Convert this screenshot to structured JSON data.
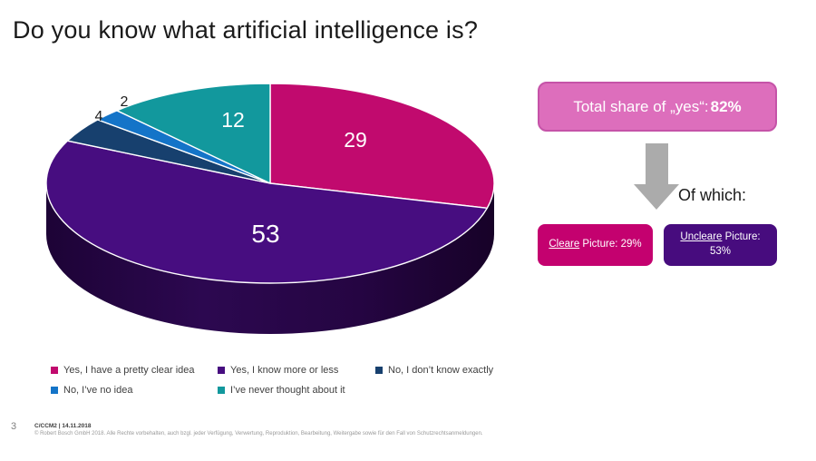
{
  "slide": {
    "title": "Do you know what artificial intelligence is?",
    "page_number": "3",
    "footer_line1": "C/CCM2 | 14.11.2018",
    "footer_line2": "© Robert Bosch GmbH 2018. Alle Rechte vorbehalten, auch bzgl. jeder Verfügung, Verwertung, Reproduktion, Bearbeitung, Weitergabe sowie für den Fall von Schutzrechtsanmeldungen."
  },
  "chart_data": {
    "type": "pie",
    "style": "3d",
    "unit": "percent",
    "start_angle_deg": 0,
    "direction": "clockwise",
    "legend_position": "bottom",
    "series": [
      {
        "label": "Yes, I have a pretty clear idea",
        "value": 29,
        "color": "#c10a6e"
      },
      {
        "label": "Yes, I know more or less",
        "value": 53,
        "color": "#470d80"
      },
      {
        "label": "No, I don’t know exactly",
        "value": 4,
        "color": "#17406e"
      },
      {
        "label": "No, I’ve no idea",
        "value": 2,
        "color": "#1474c8"
      },
      {
        "label": "I’ve never thought about it",
        "value": 12,
        "color": "#12989d"
      }
    ]
  },
  "summary": {
    "total_box": {
      "prefix": "Total share of „yes“: ",
      "value": "82%",
      "fill": "#dd6ebc",
      "border": "#c553a8"
    },
    "of_which_label": "Of which:",
    "arrow_color": "#ababab",
    "clear_box": {
      "underlined": "Cleare",
      "rest": " Picture: 29%",
      "fill": "#c4016f"
    },
    "unclear_box": {
      "underlined": "Uncleare",
      "rest": " Picture: 53%",
      "fill": "#470c7e"
    }
  }
}
